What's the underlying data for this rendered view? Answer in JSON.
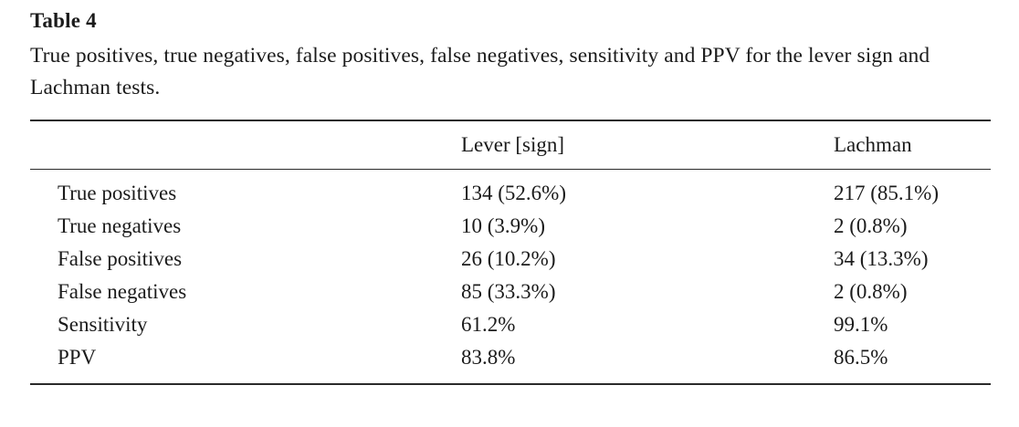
{
  "page": {
    "background": "#ffffff",
    "text_color": "#1b1b1b",
    "rule_color": "#2a2a2a"
  },
  "table": {
    "label": "Table 4",
    "caption": "True positives, true negatives, false positives, false negatives, sensitivity and PPV for the lever sign and Lachman tests.",
    "header": {
      "col1": "",
      "col2": "Lever [sign]",
      "col3": "Lachman"
    },
    "rows": [
      {
        "label": "True positives",
        "lever": "134 (52.6%)",
        "lachman": "217 (85.1%)"
      },
      {
        "label": "True negatives",
        "lever": "10 (3.9%)",
        "lachman": "2 (0.8%)"
      },
      {
        "label": "False positives",
        "lever": "26 (10.2%)",
        "lachman": "34 (13.3%)"
      },
      {
        "label": "False negatives",
        "lever": "85 (33.3%)",
        "lachman": "2 (0.8%)"
      },
      {
        "label": "Sensitivity",
        "lever": "61.2%",
        "lachman": "99.1%"
      },
      {
        "label": "PPV",
        "lever": "83.8%",
        "lachman": "86.5%"
      }
    ]
  }
}
